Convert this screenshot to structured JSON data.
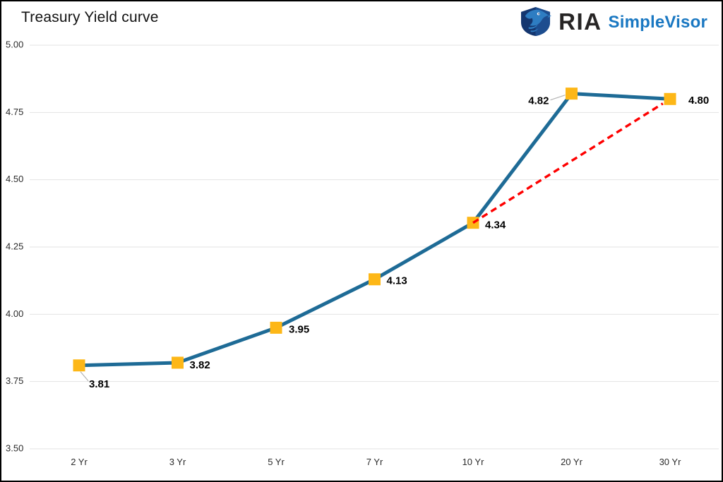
{
  "header": {
    "title": "Treasury Yield curve"
  },
  "logo": {
    "ria_text": "RIA",
    "simplevisor_text": "SimpleVisor",
    "ria_color": "#272525",
    "simplevisor_color": "#1a78c2",
    "icon": "eagle-shield-icon"
  },
  "chart_data": {
    "type": "line",
    "title": "Treasury Yield curve",
    "categories": [
      "2 Yr",
      "3 Yr",
      "5 Yr",
      "7 Yr",
      "10 Yr",
      "20 Yr",
      "30 Yr"
    ],
    "series": [
      {
        "name": "Treasury yield",
        "values": [
          3.81,
          3.82,
          3.95,
          4.13,
          4.34,
          4.82,
          4.8
        ],
        "color": "#1e6b96",
        "marker": "square",
        "marker_color": "#fdb717"
      }
    ],
    "data_labels": [
      "3.81",
      "3.82",
      "3.95",
      "4.13",
      "4.34",
      "4.82",
      "4.80"
    ],
    "overlay": {
      "type": "dashed-line",
      "from": {
        "category": "10 Yr",
        "value": 4.34
      },
      "to": {
        "category": "30 Yr",
        "value": 4.8
      },
      "color": "#fe0000",
      "style": "dashed"
    },
    "y_axis": {
      "min": 3.5,
      "max": 5.0,
      "ticks": [
        "5.00",
        "4.75",
        "4.50",
        "4.25",
        "4.00",
        "3.75",
        "3.50"
      ]
    },
    "x_axis": {
      "ticks": [
        "2 Yr",
        "3 Yr",
        "5 Yr",
        "7 Yr",
        "10 Yr",
        "20 Yr",
        "30 Yr"
      ]
    },
    "grid": true,
    "legend": "none",
    "grid_color": "#e3e3e3",
    "leader_color": "#b3b3b3"
  }
}
